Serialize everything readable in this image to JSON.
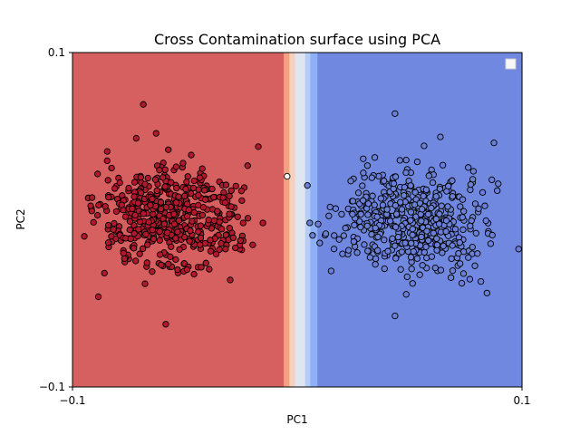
{
  "chart_data": {
    "type": "scatter",
    "title": "Cross Contamination surface using PCA",
    "xlabel": "PC1",
    "ylabel": "PC2",
    "xlim": [
      -0.1,
      0.1
    ],
    "ylim": [
      -0.1,
      0.1
    ],
    "x_ticks": [
      "−0.1",
      "0.1"
    ],
    "y_ticks": [
      "−0.1",
      "0.1"
    ],
    "legend": {
      "placement": "top-right",
      "entries": [
        ""
      ]
    },
    "grid": false,
    "decision_surface": {
      "left_region": {
        "x_range": [
          -0.1,
          -0.006
        ],
        "color": "#d65f5f"
      },
      "transition_bands": [
        {
          "x_range": [
            -0.006,
            -0.0035
          ],
          "color": "#f2a181"
        },
        {
          "x_range": [
            -0.0035,
            -0.001
          ],
          "color": "#f7d0bd"
        },
        {
          "x_range": [
            -0.001,
            0.0035
          ],
          "color": "#dfe6f2"
        },
        {
          "x_range": [
            0.0035,
            0.0058
          ],
          "color": "#b6cdf8"
        },
        {
          "x_range": [
            0.0058,
            0.009
          ],
          "color": "#8eb0f6"
        }
      ],
      "right_region": {
        "x_range": [
          0.009,
          0.1
        ],
        "color": "#7088df"
      }
    },
    "series": [
      {
        "color": "#b2182b",
        "edgecolor": "#000000",
        "cluster": {
          "center": [
            -0.057,
            0.0005
          ],
          "spread": [
            0.016,
            0.0155
          ],
          "count": 500,
          "extent_x": [
            -0.097,
            -0.006
          ],
          "extent_y": [
            -0.064,
            0.069
          ]
        }
      },
      {
        "color": "#6a7fd6",
        "edgecolor": "#000000",
        "cluster": {
          "center": [
            0.052,
            0.0005
          ],
          "spread": [
            0.016,
            0.0155
          ],
          "count": 500,
          "extent_x": [
            0.005,
            0.09
          ],
          "extent_y": [
            -0.058,
            0.063
          ]
        }
      }
    ],
    "outliers": [
      {
        "x": -0.0045,
        "y": 0.026,
        "color": "#ffffff",
        "edgecolor": "#000000"
      },
      {
        "x": 0.0045,
        "y": 0.0205,
        "color": "#6a7fd6",
        "edgecolor": "#000000"
      },
      {
        "x": 0.0985,
        "y": -0.0175,
        "color": "#6a7fd6",
        "edgecolor": "#000000"
      },
      {
        "x": -0.0685,
        "y": 0.069,
        "color": "#b2182b",
        "edgecolor": "#000000"
      },
      {
        "x": 0.0435,
        "y": 0.0635,
        "color": "#6a7fd6",
        "edgecolor": "#000000"
      },
      {
        "x": -0.0585,
        "y": -0.0625,
        "color": "#b2182b",
        "edgecolor": "#000000"
      },
      {
        "x": 0.0435,
        "y": -0.0575,
        "color": "#6a7fd6",
        "edgecolor": "#000000"
      }
    ]
  }
}
